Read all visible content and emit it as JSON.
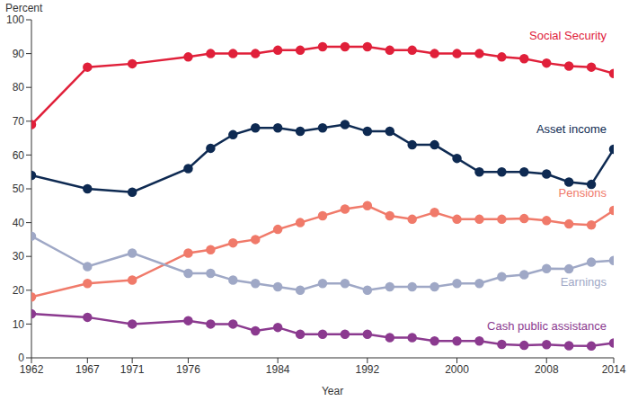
{
  "chart_data": {
    "type": "line",
    "x_label": "Year",
    "y_label": "Percent",
    "x": [
      1962,
      1967,
      1971,
      1976,
      1978,
      1980,
      1982,
      1984,
      1986,
      1988,
      1990,
      1992,
      1994,
      1996,
      1998,
      2000,
      2002,
      2004,
      2006,
      2008,
      2010,
      2012,
      2014
    ],
    "xlim": [
      1962,
      2014
    ],
    "xticks": [
      1962,
      1967,
      1971,
      1976,
      1984,
      1992,
      2000,
      2008,
      2014
    ],
    "ylim": [
      0,
      100
    ],
    "yticks": [
      0,
      10,
      20,
      30,
      40,
      50,
      60,
      70,
      80,
      90,
      100
    ],
    "grid": false,
    "marker": "circle",
    "series": [
      {
        "name": "Social Security",
        "color": "#e0203a",
        "values": [
          69,
          86,
          87,
          89,
          90,
          90,
          90,
          91,
          91,
          92,
          92,
          92,
          91,
          91,
          90,
          90,
          90,
          89,
          88.5,
          87.2,
          86.3,
          86,
          84.1
        ]
      },
      {
        "name": "Asset income",
        "color": "#0e2a52",
        "values": [
          54,
          50,
          49,
          56,
          62,
          66,
          68,
          68,
          67,
          68,
          69,
          67,
          67,
          63,
          63,
          59,
          55,
          55,
          55,
          54.4,
          52,
          51.3,
          61.7
        ]
      },
      {
        "name": "Pensions",
        "color": "#f07a6a",
        "values": [
          18,
          22,
          23,
          31,
          32,
          34,
          35,
          38,
          40,
          42,
          44,
          45,
          42,
          41,
          43,
          41,
          41,
          41,
          41.2,
          40.6,
          39.6,
          39.3,
          43.6
        ]
      },
      {
        "name": "Earnings",
        "color": "#9fa8c6",
        "values": [
          36,
          27,
          31,
          25,
          25,
          23,
          22,
          21,
          20,
          22,
          22,
          20,
          21,
          21,
          21,
          22,
          22,
          24,
          24.6,
          26.4,
          26.3,
          28.3,
          28.8
        ]
      },
      {
        "name": "Cash public assistance",
        "color": "#8b3a8f",
        "values": [
          13,
          12,
          10,
          11,
          10,
          10,
          8,
          9,
          7,
          7,
          7,
          7,
          6,
          6,
          5,
          5,
          5,
          4,
          3.7,
          3.9,
          3.6,
          3.5,
          4.4
        ]
      }
    ]
  }
}
